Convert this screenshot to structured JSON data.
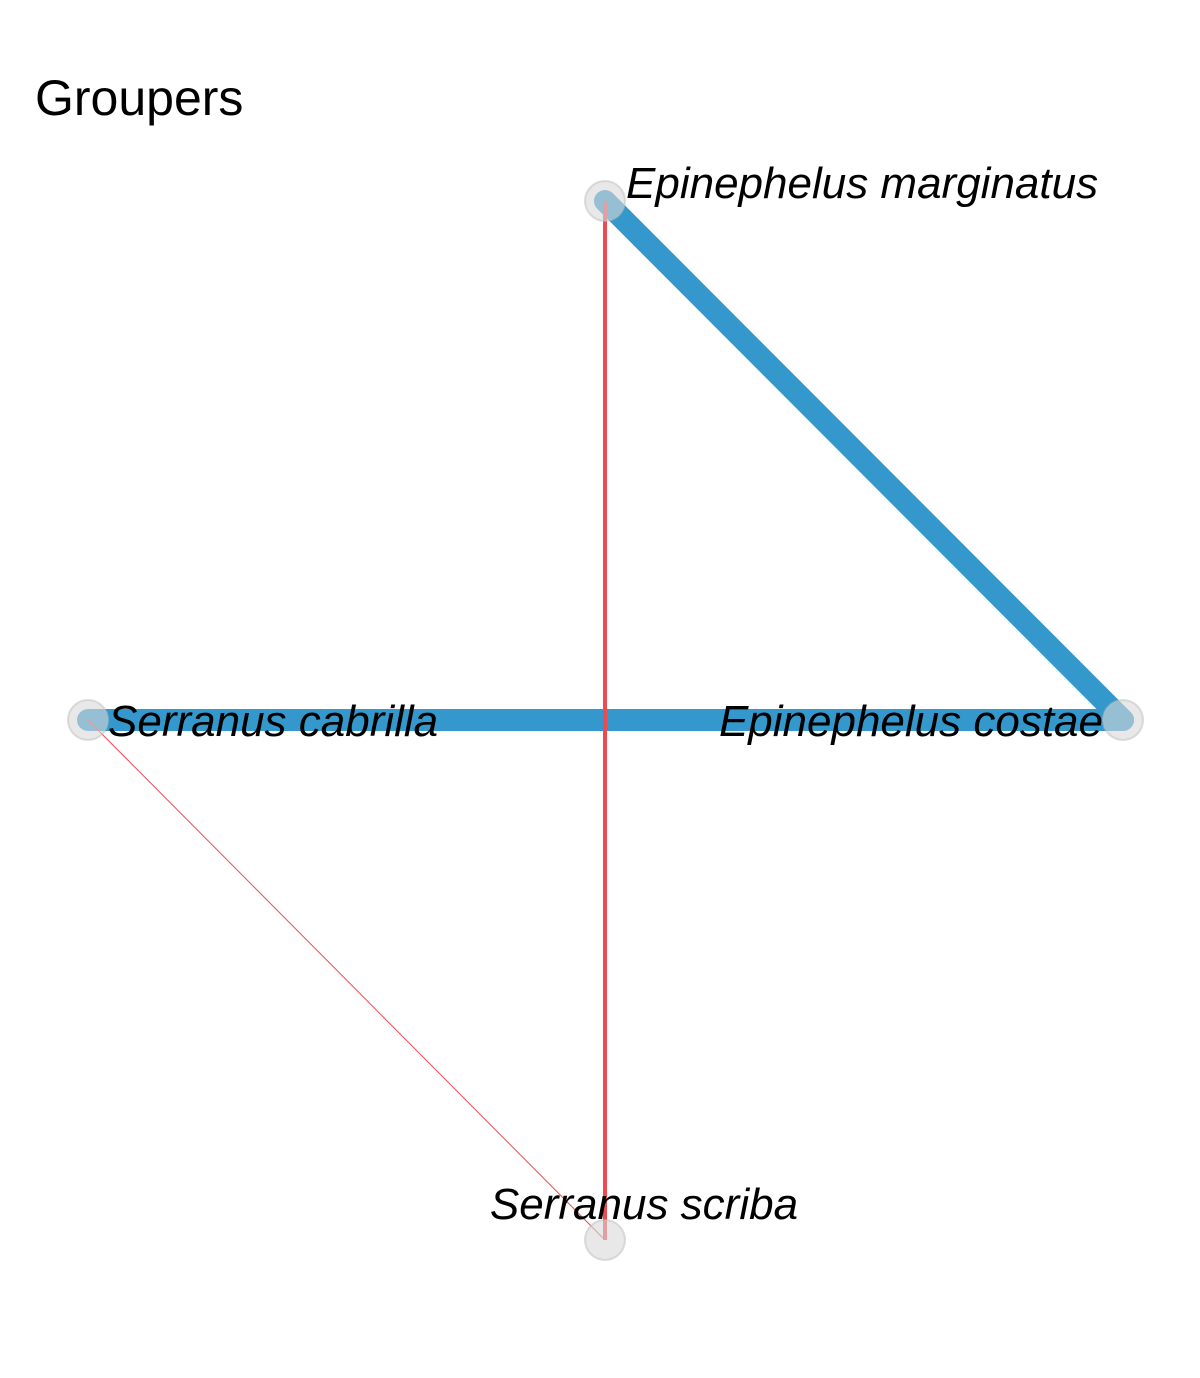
{
  "title": "Groupers",
  "colors": {
    "positive_edge": "#3498cc",
    "negative_edge": "#ee4a4f",
    "node_fill": "#d9d9d9",
    "node_stroke": "#bdbdbd",
    "label": "#000000"
  },
  "nodes": [
    {
      "id": "em",
      "label": "Epinephelus marginatus"
    },
    {
      "id": "ec",
      "label": "Epinephelus costae"
    },
    {
      "id": "sc",
      "label": "Serranus cabrilla"
    },
    {
      "id": "ss",
      "label": "Serranus scriba"
    }
  ],
  "edges": [
    {
      "from": "em",
      "to": "ec",
      "sign": "positive",
      "strength": "strong"
    },
    {
      "from": "sc",
      "to": "ec",
      "sign": "positive",
      "strength": "strong"
    },
    {
      "from": "em",
      "to": "ss",
      "sign": "negative",
      "strength": "medium"
    },
    {
      "from": "sc",
      "to": "ss",
      "sign": "negative",
      "strength": "weak"
    }
  ]
}
